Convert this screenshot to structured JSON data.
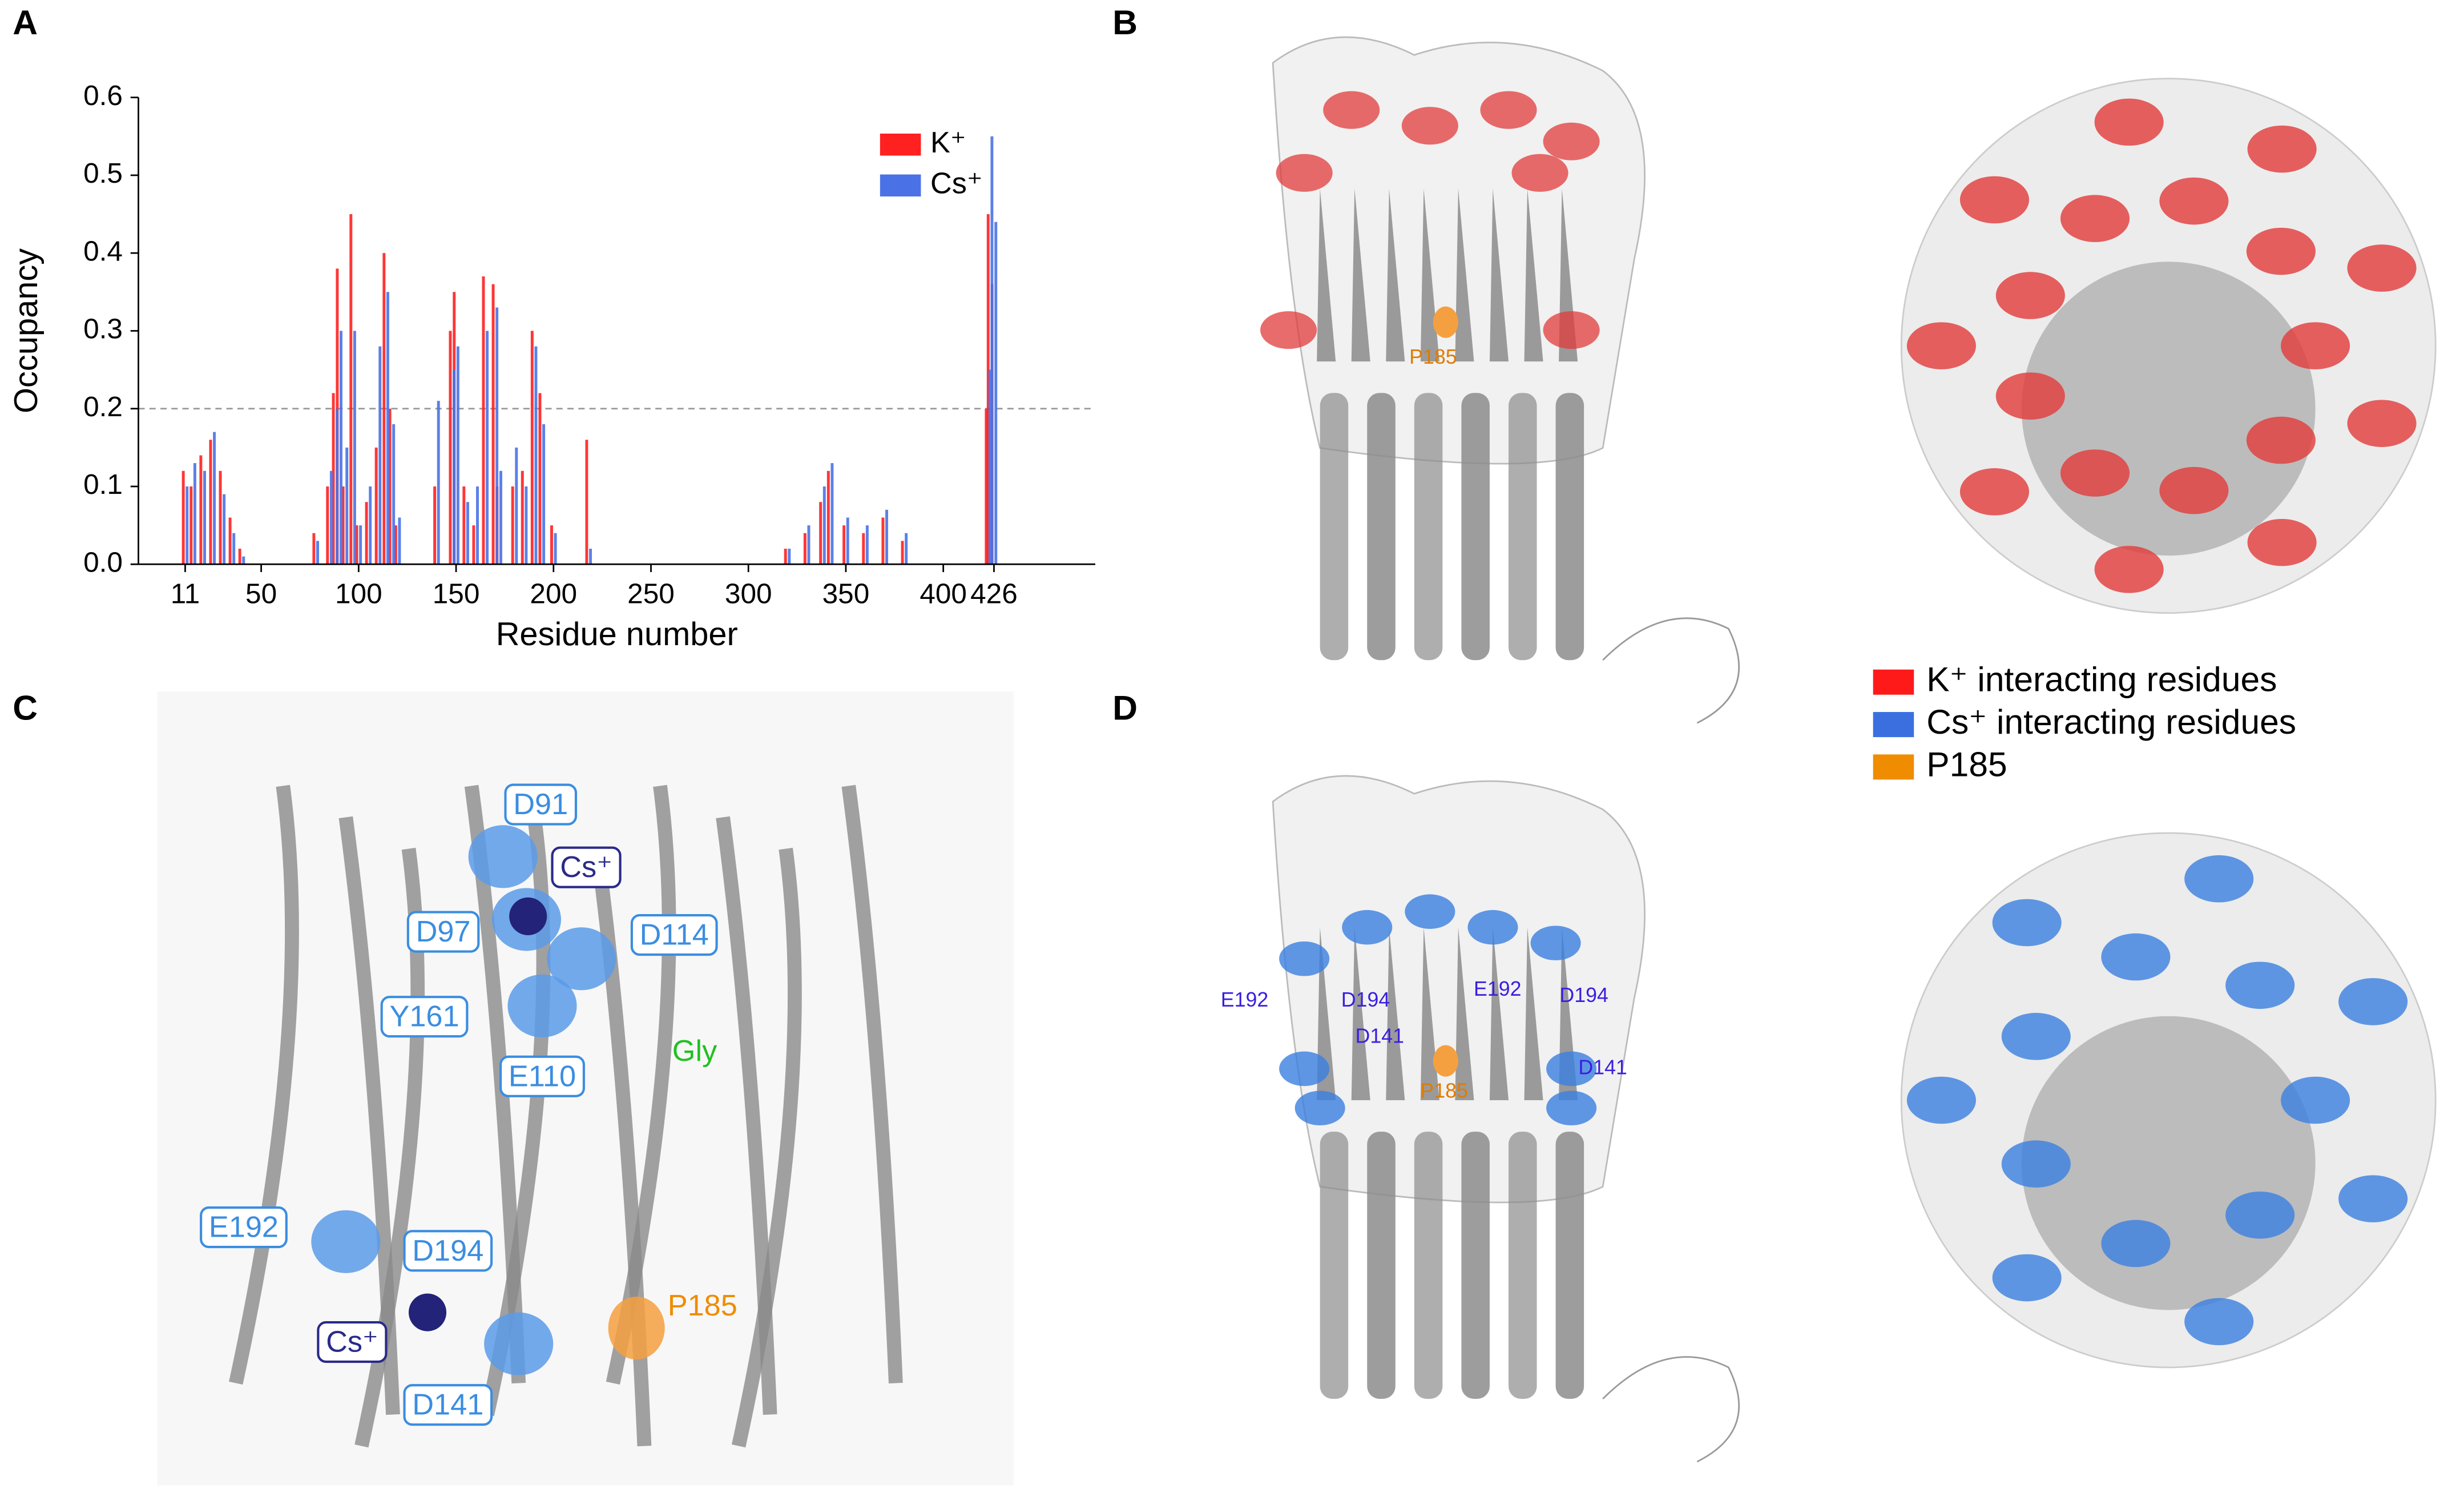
{
  "panels": {
    "labels": [
      "A",
      "B",
      "C",
      "D"
    ]
  },
  "chart_data": {
    "type": "bar",
    "x_label": "Residue number",
    "y_label": "Occupancy",
    "x": [
      11,
      15,
      20,
      25,
      30,
      35,
      40,
      78,
      85,
      88,
      90,
      93,
      97,
      100,
      105,
      110,
      114,
      117,
      120,
      140,
      148,
      150,
      155,
      160,
      165,
      170,
      172,
      180,
      185,
      190,
      194,
      200,
      218,
      320,
      330,
      338,
      342,
      350,
      360,
      370,
      380,
      423,
      424,
      426
    ],
    "series": [
      {
        "name": "K⁺",
        "color": "#ff2020",
        "values": [
          0.12,
          0.1,
          0.14,
          0.16,
          0.12,
          0.06,
          0.02,
          0.04,
          0.1,
          0.22,
          0.38,
          0.1,
          0.45,
          0.05,
          0.08,
          0.15,
          0.4,
          0.2,
          0.05,
          0.1,
          0.3,
          0.35,
          0.1,
          0.05,
          0.37,
          0.36,
          0.1,
          0.1,
          0.12,
          0.3,
          0.22,
          0.05,
          0.16,
          0.02,
          0.04,
          0.08,
          0.12,
          0.05,
          0.04,
          0.06,
          0.03,
          0.2,
          0.45,
          0.36
        ]
      },
      {
        "name": "Cs⁺",
        "color": "#4a72e6",
        "values": [
          0.1,
          0.13,
          0.12,
          0.17,
          0.09,
          0.04,
          0.01,
          0.03,
          0.12,
          0.2,
          0.3,
          0.15,
          0.3,
          0.05,
          0.1,
          0.28,
          0.35,
          0.18,
          0.06,
          0.21,
          0.25,
          0.28,
          0.08,
          0.1,
          0.3,
          0.33,
          0.12,
          0.15,
          0.1,
          0.28,
          0.18,
          0.04,
          0.02,
          0.02,
          0.05,
          0.1,
          0.13,
          0.06,
          0.05,
          0.07,
          0.04,
          0.25,
          0.55,
          0.44
        ]
      }
    ],
    "xlim": [
      -13,
      478
    ],
    "xticks": [
      11,
      50,
      100,
      150,
      200,
      250,
      300,
      350,
      400,
      426
    ],
    "ylim": [
      0,
      0.6
    ],
    "yticks": [
      {
        "value": 0,
        "label": "0.0"
      },
      0.1,
      0.2,
      0.3,
      0.4,
      0.5,
      0.6
    ],
    "reference_line": 0.2,
    "legend": "upper right"
  },
  "panel_b": {
    "labels": [
      "P185"
    ]
  },
  "panel_c": {
    "labels": [
      "D91",
      "Cs⁺",
      "D97",
      "D114",
      "Y161",
      "E110",
      "Gly",
      "E192",
      "D194",
      "Cs⁺",
      "D141",
      "P185"
    ]
  },
  "panel_d": {
    "labels": [
      "E192",
      "D194",
      "D141",
      "E192",
      "D194",
      "D141",
      "P185"
    ]
  },
  "legend": {
    "items": [
      {
        "text": "K⁺ interacting residues",
        "color": "#ff1a1a"
      },
      {
        "text": "Cs⁺ interacting residues",
        "color": "#3b6fe0"
      },
      {
        "text": "P185",
        "color": "#f08c00"
      }
    ]
  }
}
